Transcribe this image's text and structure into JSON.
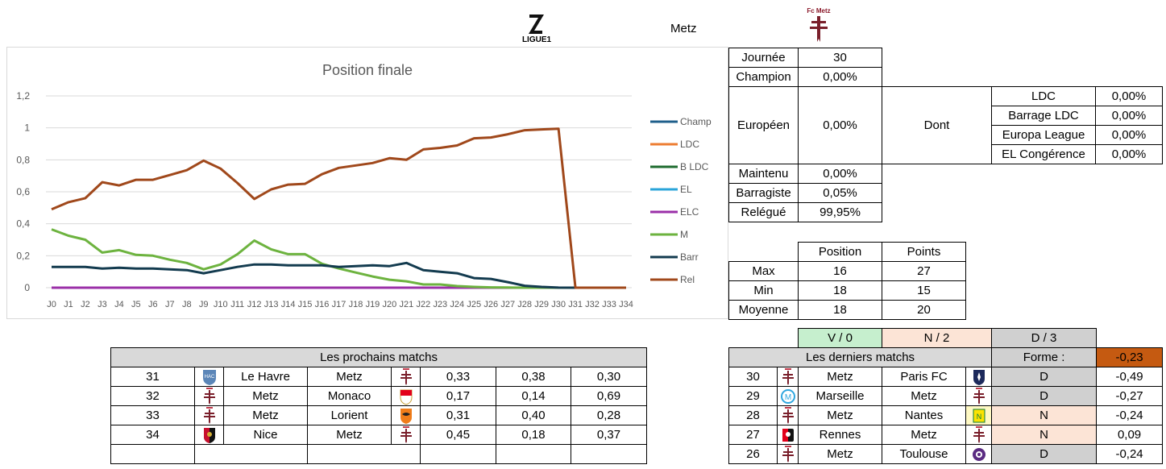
{
  "header": {
    "league_logo_text": "LIGUE1",
    "team_name": "Metz",
    "club_logo_text": "Fc Metz"
  },
  "chart_data": {
    "type": "line",
    "title": "Position finale",
    "categories": [
      "J0",
      "J1",
      "J2",
      "J3",
      "J4",
      "J5",
      "J6",
      "J7",
      "J8",
      "J9",
      "J10",
      "J11",
      "J12",
      "J13",
      "J14",
      "J15",
      "J16",
      "J17",
      "J18",
      "J19",
      "J20",
      "J21",
      "J22",
      "J23",
      "J24",
      "J25",
      "J26",
      "J27",
      "J28",
      "J29",
      "J30",
      "J31",
      "J32",
      "J33",
      "J34"
    ],
    "ylim": [
      0,
      1.2
    ],
    "y_ticks": [
      "0",
      "0,2",
      "0,4",
      "0,6",
      "0,8",
      "1",
      "1,2"
    ],
    "grid": true,
    "legend_position": "right",
    "series": [
      {
        "name": "Champ",
        "color": "#1f5f8b",
        "values": [
          0,
          0,
          0,
          0,
          0,
          0,
          0,
          0,
          0,
          0,
          0,
          0,
          0,
          0,
          0,
          0,
          0,
          0,
          0,
          0,
          0,
          0,
          0,
          0,
          0,
          0,
          0,
          0,
          0,
          0,
          0,
          0,
          0,
          0,
          0
        ]
      },
      {
        "name": "LDC",
        "color": "#ed7d31",
        "values": [
          0,
          0,
          0,
          0,
          0,
          0,
          0,
          0,
          0,
          0,
          0,
          0,
          0,
          0,
          0,
          0,
          0,
          0,
          0,
          0,
          0,
          0,
          0,
          0,
          0,
          0,
          0,
          0,
          0,
          0,
          0,
          0,
          0,
          0,
          0
        ]
      },
      {
        "name": "B LDC",
        "color": "#1e6b2f",
        "values": [
          0,
          0,
          0,
          0,
          0,
          0,
          0,
          0,
          0,
          0,
          0,
          0,
          0,
          0,
          0,
          0,
          0,
          0,
          0,
          0,
          0,
          0,
          0,
          0,
          0,
          0,
          0,
          0,
          0,
          0,
          0,
          0,
          0,
          0,
          0
        ]
      },
      {
        "name": "EL",
        "color": "#2aa4d9",
        "values": [
          0,
          0,
          0,
          0,
          0,
          0,
          0,
          0,
          0,
          0,
          0,
          0,
          0,
          0,
          0,
          0,
          0,
          0,
          0,
          0,
          0,
          0,
          0,
          0,
          0,
          0,
          0,
          0,
          0,
          0,
          0,
          0,
          0,
          0,
          0
        ]
      },
      {
        "name": "ELC",
        "color": "#9b30a8",
        "values": [
          0,
          0,
          0,
          0,
          0,
          0,
          0,
          0,
          0,
          0,
          0,
          0,
          0,
          0,
          0,
          0,
          0,
          0,
          0,
          0,
          0,
          0,
          0,
          0,
          0,
          0,
          0,
          0,
          0,
          0,
          0,
          0,
          0,
          0,
          0
        ]
      },
      {
        "name": "M",
        "color": "#6db33f",
        "values": [
          0.365,
          0.325,
          0.3,
          0.22,
          0.235,
          0.205,
          0.2,
          0.175,
          0.155,
          0.115,
          0.145,
          0.21,
          0.295,
          0.24,
          0.21,
          0.21,
          0.15,
          0.12,
          0.095,
          0.07,
          0.05,
          0.04,
          0.02,
          0.02,
          0.01,
          0.005,
          0.002,
          0.001,
          0,
          0,
          0,
          0,
          0,
          0,
          0
        ]
      },
      {
        "name": "Barr",
        "color": "#133b4f",
        "values": [
          0.13,
          0.13,
          0.13,
          0.12,
          0.125,
          0.12,
          0.12,
          0.115,
          0.11,
          0.09,
          0.11,
          0.13,
          0.145,
          0.145,
          0.14,
          0.14,
          0.14,
          0.13,
          0.135,
          0.14,
          0.135,
          0.155,
          0.11,
          0.1,
          0.09,
          0.06,
          0.055,
          0.035,
          0.012,
          0.005,
          0.0005,
          0,
          0,
          0,
          0
        ]
      },
      {
        "name": "Rel",
        "color": "#a0481b",
        "values": [
          0.49,
          0.535,
          0.56,
          0.66,
          0.64,
          0.675,
          0.675,
          0.705,
          0.735,
          0.795,
          0.745,
          0.655,
          0.555,
          0.615,
          0.645,
          0.65,
          0.71,
          0.75,
          0.765,
          0.78,
          0.81,
          0.8,
          0.865,
          0.875,
          0.89,
          0.935,
          0.94,
          0.96,
          0.985,
          0.99,
          0.995,
          0,
          0,
          0,
          0
        ]
      }
    ]
  },
  "stats_table": {
    "journee_label": "Journée",
    "journee_value": "30",
    "champion_label": "Champion",
    "champion_value": "0,00%",
    "europeen_label": "Européen",
    "europeen_value": "0,00%",
    "dont_label": "Dont",
    "ldc_label": "LDC",
    "ldc_value": "0,00%",
    "barrage_ldc_label": "Barrage LDC",
    "barrage_ldc_value": "0,00%",
    "europa_label": "Europa League",
    "europa_value": "0,00%",
    "elc_label": "EL Congérence",
    "elc_value": "0,00%",
    "maintenu_label": "Maintenu",
    "maintenu_value": "0,00%",
    "barragiste_label": "Barragiste",
    "barragiste_value": "0,05%",
    "relegue_label": "Relégué",
    "relegue_value": "99,95%"
  },
  "position_table": {
    "col_position": "Position",
    "col_points": "Points",
    "rows": [
      {
        "label": "Max",
        "position": "16",
        "points": "27"
      },
      {
        "label": "Min",
        "position": "18",
        "points": "15"
      },
      {
        "label": "Moyenne",
        "position": "18",
        "points": "20"
      }
    ]
  },
  "form_header": {
    "wins": "V / 0",
    "draws": "N / 2",
    "losses": "D / 3"
  },
  "next_matches": {
    "title": "Les prochains matchs",
    "rows": [
      {
        "round": "31",
        "home": "Le Havre",
        "away": "Metz",
        "p1": "0,33",
        "pn": "0,38",
        "p2": "0,30",
        "home_logo": "havre",
        "away_logo": "metz"
      },
      {
        "round": "32",
        "home": "Metz",
        "away": "Monaco",
        "p1": "0,17",
        "pn": "0,14",
        "p2": "0,69",
        "home_logo": "metz",
        "away_logo": "monaco"
      },
      {
        "round": "33",
        "home": "Metz",
        "away": "Lorient",
        "p1": "0,31",
        "pn": "0,40",
        "p2": "0,28",
        "home_logo": "metz",
        "away_logo": "lorient"
      },
      {
        "round": "34",
        "home": "Nice",
        "away": "Metz",
        "p1": "0,45",
        "pn": "0,18",
        "p2": "0,37",
        "home_logo": "nice",
        "away_logo": "metz"
      }
    ]
  },
  "last_matches": {
    "title": "Les derniers matchs",
    "forme_label": "Forme :",
    "forme_value": "-0,23",
    "rows": [
      {
        "round": "30",
        "home": "Metz",
        "away": "Paris FC",
        "result": "D",
        "score": "-0,49",
        "home_logo": "metz",
        "away_logo": "parisfc"
      },
      {
        "round": "29",
        "home": "Marseille",
        "away": "Metz",
        "result": "D",
        "score": "-0,27",
        "home_logo": "marseille",
        "away_logo": "metz"
      },
      {
        "round": "28",
        "home": "Metz",
        "away": "Nantes",
        "result": "N",
        "score": "-0,24",
        "home_logo": "metz",
        "away_logo": "nantes"
      },
      {
        "round": "27",
        "home": "Rennes",
        "away": "Metz",
        "result": "N",
        "score": "0,09",
        "home_logo": "rennes",
        "away_logo": "metz"
      },
      {
        "round": "26",
        "home": "Metz",
        "away": "Toulouse",
        "result": "D",
        "score": "-0,24",
        "home_logo": "metz",
        "away_logo": "toulouse"
      }
    ]
  }
}
